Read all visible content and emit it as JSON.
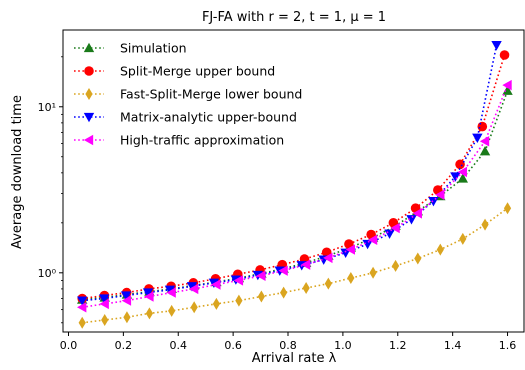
{
  "chart_data": {
    "type": "line",
    "title": "FJ-FA with r = 2, t = 1, μ = 1",
    "xlabel": "Arrival rate λ",
    "ylabel": "Average download time",
    "xlim": [
      -0.02,
      1.66
    ],
    "ylim": [
      0.44,
      29
    ],
    "yscale": "log",
    "x_ticks": [
      0.0,
      0.2,
      0.4,
      0.6,
      0.8,
      1.0,
      1.2,
      1.4,
      1.6
    ],
    "x_tick_labels": [
      "0.0",
      "0.2",
      "0.4",
      "0.6",
      "0.8",
      "1.0",
      "1.2",
      "1.4",
      "1.6"
    ],
    "y_ticks": [
      1,
      10
    ],
    "y_tick_labels": [
      "10⁰",
      "10¹"
    ],
    "legend_position": "top-left",
    "series": [
      {
        "name": "Simulation",
        "color": "#1a7a1a",
        "marker": "triangle-up",
        "x": [
          0.05,
          0.132,
          0.213,
          0.295,
          0.376,
          0.458,
          0.539,
          0.621,
          0.703,
          0.784,
          0.866,
          0.947,
          1.029,
          1.11,
          1.192,
          1.273,
          1.355,
          1.437,
          1.518,
          1.6
        ],
        "y": [
          0.69,
          0.71,
          0.74,
          0.77,
          0.8,
          0.84,
          0.88,
          0.93,
          0.99,
          1.06,
          1.15,
          1.27,
          1.42,
          1.63,
          1.92,
          2.35,
          2.9,
          3.7,
          5.4,
          12.5
        ]
      },
      {
        "name": "Split-Merge upper bound",
        "color": "#ff0000",
        "marker": "circle",
        "x": [
          0.05,
          0.131,
          0.212,
          0.293,
          0.374,
          0.455,
          0.536,
          0.617,
          0.698,
          0.779,
          0.86,
          0.941,
          1.022,
          1.103,
          1.184,
          1.265,
          1.346,
          1.427,
          1.508,
          1.589
        ],
        "y": [
          0.7,
          0.73,
          0.76,
          0.8,
          0.83,
          0.87,
          0.92,
          0.98,
          1.04,
          1.12,
          1.21,
          1.33,
          1.49,
          1.7,
          2.0,
          2.45,
          3.15,
          4.5,
          7.6,
          20.5
        ]
      },
      {
        "name": "Fast-Split-Merge lower bound",
        "color": "#daa520",
        "marker": "thin-diamond",
        "x": [
          0.05,
          0.132,
          0.213,
          0.295,
          0.376,
          0.458,
          0.539,
          0.621,
          0.703,
          0.784,
          0.866,
          0.947,
          1.029,
          1.11,
          1.192,
          1.273,
          1.355,
          1.437,
          1.518,
          1.6
        ],
        "y": [
          0.5,
          0.52,
          0.54,
          0.57,
          0.59,
          0.62,
          0.65,
          0.68,
          0.72,
          0.76,
          0.81,
          0.86,
          0.93,
          1.0,
          1.1,
          1.22,
          1.38,
          1.6,
          1.95,
          2.45
        ]
      },
      {
        "name": "Matrix-analytic upper-bound",
        "color": "#0000ff",
        "marker": "triangle-down",
        "x": [
          0.05,
          0.13,
          0.21,
          0.29,
          0.37,
          0.45,
          0.53,
          0.61,
          0.69,
          0.77,
          0.85,
          0.93,
          1.01,
          1.09,
          1.17,
          1.25,
          1.33,
          1.41,
          1.49,
          1.56
        ],
        "y": [
          0.68,
          0.7,
          0.73,
          0.76,
          0.79,
          0.83,
          0.87,
          0.91,
          0.97,
          1.03,
          1.11,
          1.2,
          1.32,
          1.49,
          1.72,
          2.1,
          2.7,
          3.8,
          6.5,
          23.5
        ]
      },
      {
        "name": "High-traffic approximation",
        "color": "#ff00ff",
        "marker": "triangle-left",
        "x": [
          0.05,
          0.132,
          0.213,
          0.295,
          0.376,
          0.458,
          0.539,
          0.621,
          0.703,
          0.784,
          0.866,
          0.947,
          1.029,
          1.11,
          1.192,
          1.273,
          1.355,
          1.437,
          1.518,
          1.6
        ],
        "y": [
          0.62,
          0.65,
          0.68,
          0.72,
          0.76,
          0.8,
          0.85,
          0.9,
          0.96,
          1.03,
          1.12,
          1.23,
          1.38,
          1.58,
          1.86,
          2.28,
          2.95,
          4.05,
          6.2,
          13.5
        ]
      }
    ]
  }
}
